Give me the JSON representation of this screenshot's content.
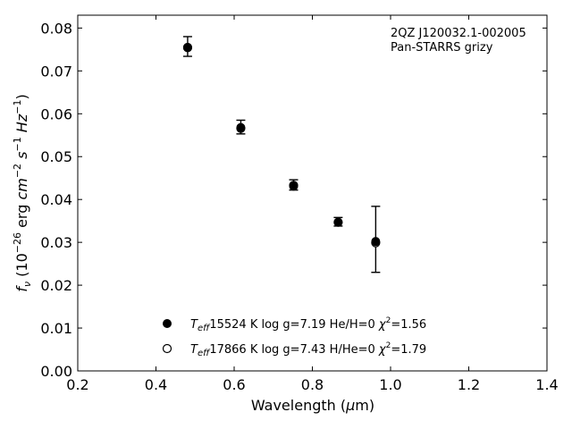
{
  "chart_data": {
    "type": "scatter",
    "title": "",
    "xlabel": "Wavelength (μm)",
    "ylabel": "f_ν (10^-26 erg cm^-2 s^-1 Hz^-1)",
    "xlim": [
      0.2,
      1.4
    ],
    "ylim": [
      0.0,
      0.083
    ],
    "xticks": [
      "0.2",
      "0.4",
      "0.6",
      "0.8",
      "1.0",
      "1.2",
      "1.4"
    ],
    "yticks": [
      "0.00",
      "0.01",
      "0.02",
      "0.03",
      "0.04",
      "0.05",
      "0.06",
      "0.07",
      "0.08"
    ],
    "annotation": [
      "2QZ J120032.1-002005",
      "Pan-STARRS grizy"
    ],
    "observed": [
      {
        "x": 0.481,
        "y": 0.0757,
        "err": 0.0023
      },
      {
        "x": 0.617,
        "y": 0.0569,
        "err": 0.0016
      },
      {
        "x": 0.752,
        "y": 0.0434,
        "err": 0.0012
      },
      {
        "x": 0.866,
        "y": 0.0348,
        "err": 0.001
      },
      {
        "x": 0.962,
        "y": 0.0307,
        "err": 0.0077
      }
    ],
    "series": [
      {
        "marker": "filled-circle",
        "legend": {
          "teff": "15524 K",
          "logg": "log g=7.19",
          "comp": "He/H=0",
          "chi2": "=1.56"
        },
        "values": [
          {
            "x": 0.481,
            "y": 0.0754
          },
          {
            "x": 0.617,
            "y": 0.0568
          },
          {
            "x": 0.752,
            "y": 0.0431
          },
          {
            "x": 0.866,
            "y": 0.0347
          },
          {
            "x": 0.962,
            "y": 0.0302
          }
        ]
      },
      {
        "marker": "open-circle",
        "legend": {
          "teff": "17866 K",
          "logg": "log g=7.43",
          "comp": "H/He=0",
          "chi2": "=1.79"
        },
        "values": [
          {
            "x": 0.481,
            "y": 0.0755
          },
          {
            "x": 0.617,
            "y": 0.0566
          },
          {
            "x": 0.752,
            "y": 0.0433
          },
          {
            "x": 0.866,
            "y": 0.0347
          },
          {
            "x": 0.962,
            "y": 0.0299
          }
        ]
      }
    ]
  }
}
